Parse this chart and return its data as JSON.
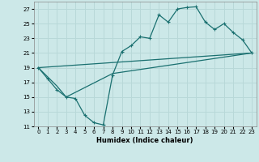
{
  "xlabel": "Humidex (Indice chaleur)",
  "bg_color": "#cce8e8",
  "grid_color": "#b8d8d8",
  "line_color": "#1a7070",
  "xlim": [
    -0.5,
    23.5
  ],
  "ylim": [
    11,
    28
  ],
  "xticks": [
    0,
    1,
    2,
    3,
    4,
    5,
    6,
    7,
    8,
    9,
    10,
    11,
    12,
    13,
    14,
    15,
    16,
    17,
    18,
    19,
    20,
    21,
    22,
    23
  ],
  "yticks": [
    11,
    13,
    15,
    17,
    19,
    21,
    23,
    25,
    27
  ],
  "line1_x": [
    0,
    1,
    2,
    3,
    4,
    5,
    6,
    7,
    8,
    9,
    10,
    11,
    12,
    13,
    14,
    15,
    16,
    17,
    18,
    19,
    20,
    21,
    22,
    23
  ],
  "line1_y": [
    19.0,
    17.5,
    16.0,
    15.0,
    14.8,
    12.5,
    11.5,
    11.2,
    18.0,
    21.2,
    22.0,
    23.2,
    23.0,
    26.2,
    25.2,
    27.0,
    27.2,
    27.3,
    25.2,
    24.2,
    25.0,
    23.8,
    22.8,
    21.0
  ],
  "line2_x": [
    0,
    23
  ],
  "line2_y": [
    19.0,
    21.0
  ],
  "line3_x": [
    0,
    2,
    3,
    8,
    23
  ],
  "line3_y": [
    19.0,
    16.5,
    15.0,
    18.2,
    21.0
  ]
}
